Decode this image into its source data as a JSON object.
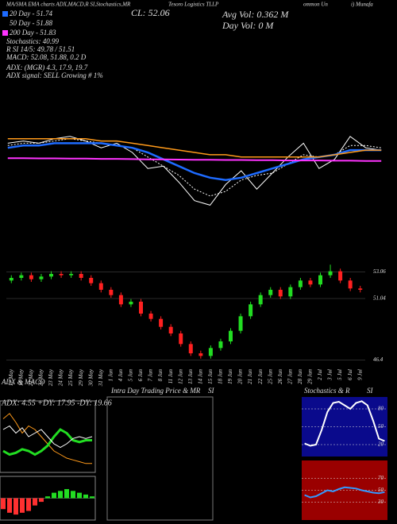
{
  "header": {
    "top_left": "MA/SMA EMA charts ADX,MACD,R SI,Stochastics,MR",
    "top_mid": "Tesoro Logistics TLLP",
    "top_right1": "ommon Un",
    "top_right2": "i) Munafa",
    "ma20": "20 Day - 51.74",
    "ma50": "50 Day - 51.88",
    "ma200": "200 Day - 51.83",
    "stoch": "Stochastics: 40.99",
    "rsi": "R      SI 14/5: 49.78 / 51.51",
    "macd": "MACD: 52.08, 51.88, 0.2  D",
    "adx": "ADX:             (MGR) 4.3, 17.9, 19.7",
    "adx_signal": "ADX  signal: SELL Growing # 1%",
    "close": "CL: 52.06",
    "avg_vol": "Avg Vol: 0.362  M",
    "day_vol": "Day Vol: 0  M",
    "intraday_title": "Intra Day Trading Price  & MR",
    "intraday_title2": "SI"
  },
  "chart_data": [
    {
      "type": "line",
      "ylim": [
        49.5,
        54
      ],
      "series": [
        {
          "color": "#ffffff",
          "values": [
            52.6,
            52.7,
            52.6,
            52.8,
            52.9,
            52.7,
            52.4,
            52.6,
            52.2,
            51.5,
            51.6,
            50.9,
            50.1,
            49.9,
            50.8,
            51.4,
            50.6,
            51.3,
            52.0,
            52.6,
            51.5,
            51.9,
            52.9,
            52.4,
            52.3
          ]
        },
        {
          "color": "#ffffff",
          "dashed": true,
          "values": [
            52.5,
            52.6,
            52.6,
            52.7,
            52.8,
            52.7,
            52.6,
            52.5,
            52.4,
            52.0,
            51.6,
            51.2,
            50.6,
            50.3,
            50.5,
            51.0,
            51.2,
            51.3,
            51.7,
            52.1,
            52.0,
            52.1,
            52.5,
            52.5,
            52.4
          ]
        },
        {
          "color": "#1e6bff",
          "width": 2.5,
          "values": [
            52.4,
            52.5,
            52.5,
            52.6,
            52.6,
            52.6,
            52.6,
            52.5,
            52.4,
            52.2,
            51.9,
            51.6,
            51.3,
            51.1,
            51.0,
            51.1,
            51.3,
            51.5,
            51.7,
            51.9,
            52.0,
            52.1,
            52.3,
            52.3,
            52.3
          ]
        },
        {
          "color": "#ff9a1a",
          "width": 1.5,
          "values": [
            52.8,
            52.8,
            52.8,
            52.8,
            52.8,
            52.8,
            52.7,
            52.7,
            52.6,
            52.5,
            52.4,
            52.3,
            52.2,
            52.1,
            52.1,
            52.0,
            52.0,
            52.0,
            52.0,
            52.0,
            52.0,
            52.1,
            52.2,
            52.3,
            52.3
          ]
        },
        {
          "color": "#ff33ff",
          "width": 2,
          "values": [
            51.95,
            51.95,
            51.94,
            51.94,
            51.93,
            51.93,
            51.92,
            51.92,
            51.91,
            51.9,
            51.9,
            51.89,
            51.88,
            51.88,
            51.87,
            51.87,
            51.86,
            51.86,
            51.85,
            51.85,
            51.85,
            51.84,
            51.84,
            51.83,
            51.83
          ]
        }
      ]
    },
    {
      "type": "candlestick",
      "ylim": [
        46.0,
        53.8
      ],
      "yticks": [
        53.06,
        51.04,
        46.4
      ],
      "categories": [
        "17 May",
        "18 May",
        "21 May",
        "22 May",
        "23 May",
        "24 May",
        "25 May",
        "29 May",
        "30 May",
        "31 May",
        "1 Jun",
        "4 Jun",
        "5 Jun",
        "6 Jun",
        "7 Jun",
        "8 Jun",
        "11 Jun",
        "12 Jun",
        "13 Jun",
        "14 Jun",
        "15 Jun",
        "18 Jun",
        "19 Jun",
        "20 Jun",
        "21 Jun",
        "22 Jun",
        "25 Jun",
        "26 Jun",
        "27 Jun",
        "28 Jun",
        "29 Jun",
        "2 Jul",
        "3 Jul",
        "5 Jul",
        "6 Jul",
        "9 Jul"
      ],
      "open": [
        52.4,
        52.6,
        52.8,
        52.5,
        52.7,
        52.9,
        52.8,
        52.9,
        52.6,
        52.2,
        51.7,
        51.3,
        50.6,
        50.8,
        49.9,
        49.5,
        48.9,
        48.4,
        47.6,
        46.9,
        46.7,
        47.3,
        47.8,
        48.6,
        49.7,
        50.6,
        51.3,
        51.7,
        51.2,
        51.9,
        52.4,
        52.1,
        52.8,
        53.1,
        52.4,
        51.8
      ],
      "high": [
        52.8,
        53.0,
        53.0,
        52.9,
        53.1,
        53.1,
        53.1,
        53.1,
        52.8,
        52.4,
        51.9,
        51.5,
        51.0,
        51.0,
        50.1,
        49.7,
        49.1,
        48.6,
        47.8,
        47.1,
        47.5,
        48.0,
        48.8,
        49.9,
        50.8,
        51.5,
        51.9,
        51.9,
        52.1,
        52.6,
        52.6,
        53.0,
        53.6,
        53.3,
        52.6,
        52.0
      ],
      "low": [
        52.2,
        52.4,
        52.3,
        52.3,
        52.5,
        52.6,
        52.6,
        52.4,
        52.0,
        51.5,
        51.1,
        50.4,
        50.4,
        49.7,
        49.3,
        48.7,
        48.2,
        47.4,
        46.7,
        46.5,
        46.5,
        47.1,
        47.6,
        48.4,
        49.5,
        50.4,
        51.1,
        51.0,
        51.0,
        51.7,
        51.9,
        51.9,
        52.6,
        52.2,
        51.6,
        51.5
      ],
      "close": [
        52.6,
        52.8,
        52.5,
        52.7,
        52.9,
        52.8,
        52.9,
        52.6,
        52.2,
        51.7,
        51.3,
        50.6,
        50.8,
        49.9,
        49.5,
        48.9,
        48.4,
        47.6,
        46.9,
        46.7,
        47.3,
        47.8,
        48.6,
        49.7,
        50.6,
        51.3,
        51.7,
        51.2,
        51.9,
        52.4,
        52.1,
        52.8,
        53.1,
        52.4,
        51.8,
        51.7
      ]
    },
    {
      "type": "line",
      "title": "ADX  & MACD",
      "subtitle": "ADX: 4.55 +DY: 17.95 -DY: 19.66",
      "ylim": [
        0,
        40
      ],
      "series": [
        {
          "color": "#ff9a1a",
          "width": 1,
          "values": [
            30,
            33,
            28,
            22,
            26,
            24,
            20,
            16,
            12,
            10,
            8,
            7,
            6,
            5,
            5
          ]
        },
        {
          "color": "#22dd22",
          "width": 3,
          "values": [
            12,
            10,
            11,
            13,
            12,
            10,
            12,
            15,
            20,
            24,
            22,
            18,
            17,
            18,
            18
          ]
        },
        {
          "color": "#ffffff",
          "width": 1,
          "values": [
            24,
            26,
            22,
            25,
            20,
            22,
            24,
            20,
            16,
            14,
            16,
            19,
            20,
            19,
            20
          ]
        }
      ]
    },
    {
      "type": "bar",
      "ylim": [
        -0.6,
        0.6
      ],
      "values": [
        -0.3,
        -0.4,
        -0.45,
        -0.4,
        -0.35,
        -0.2,
        -0.1,
        0.05,
        0.15,
        0.2,
        0.25,
        0.2,
        0.15,
        0.1,
        0.05
      ]
    },
    {
      "type": "line",
      "title": "Stochastics & R",
      "title2": "SI",
      "ylim": [
        0,
        100
      ],
      "yticks": [
        80,
        50,
        20
      ],
      "background": "#0a0a8c",
      "series": [
        {
          "color": "#ffffff",
          "width": 2,
          "values": [
            22,
            18,
            20,
            45,
            75,
            90,
            92,
            86,
            80,
            90,
            93,
            86,
            60,
            30,
            26
          ]
        }
      ]
    },
    {
      "type": "line",
      "ylim": [
        0,
        100
      ],
      "yticks": [
        70,
        50,
        30
      ],
      "background": "#9a0000",
      "series": [
        {
          "color": "#3399ff",
          "width": 2,
          "values": [
            42,
            38,
            40,
            45,
            50,
            48,
            52,
            55,
            54,
            53,
            50,
            48,
            46,
            45,
            47
          ]
        }
      ]
    }
  ]
}
